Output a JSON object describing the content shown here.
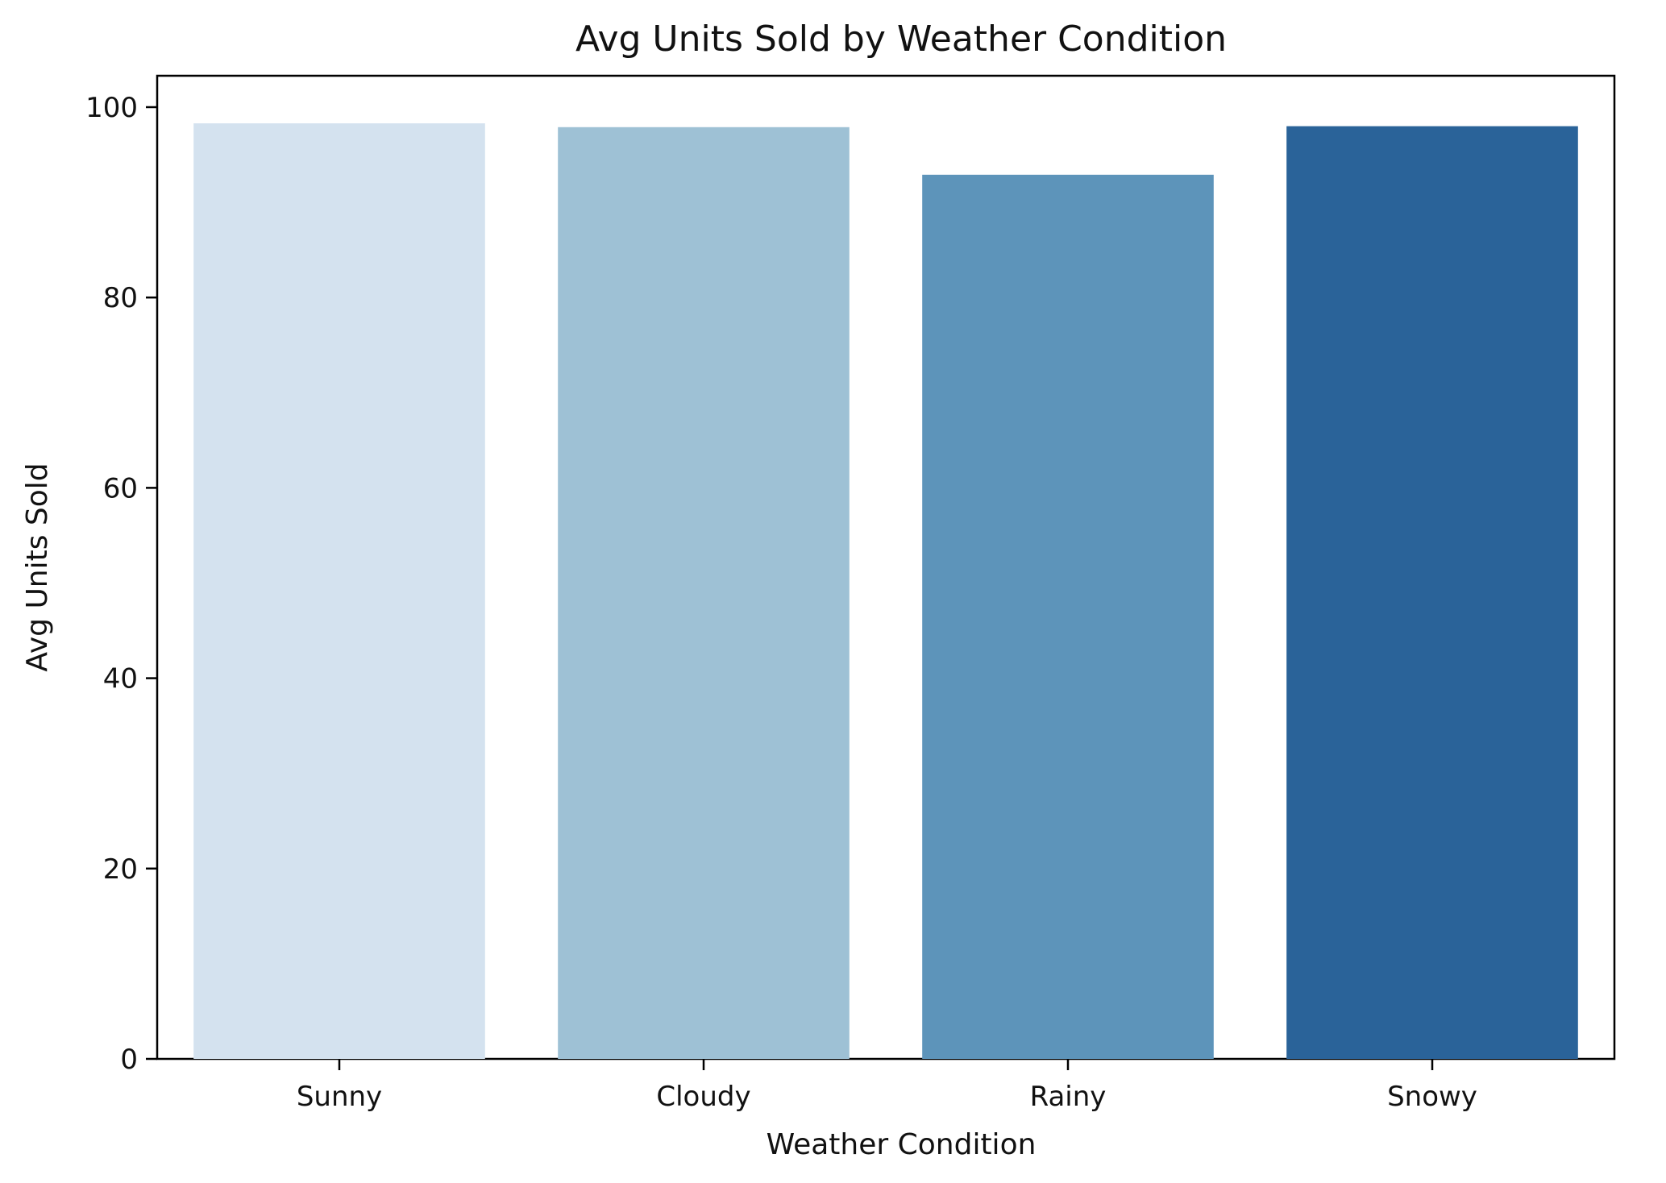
{
  "chart_data": {
    "type": "bar",
    "title": "Avg Units Sold by Weather Condition",
    "xlabel": "Weather Condition",
    "ylabel": "Avg Units Sold",
    "categories": [
      "Sunny",
      "Cloudy",
      "Rainy",
      "Snowy"
    ],
    "values": [
      98.3,
      97.9,
      92.9,
      98.0
    ],
    "colors": [
      "#d4e2ef",
      "#9ec1d5",
      "#5d94ba",
      "#2a6399"
    ],
    "ylim": [
      0,
      103.3
    ],
    "yticks": [
      0,
      20,
      40,
      60,
      80,
      100
    ],
    "grid": false,
    "legend": "none"
  }
}
